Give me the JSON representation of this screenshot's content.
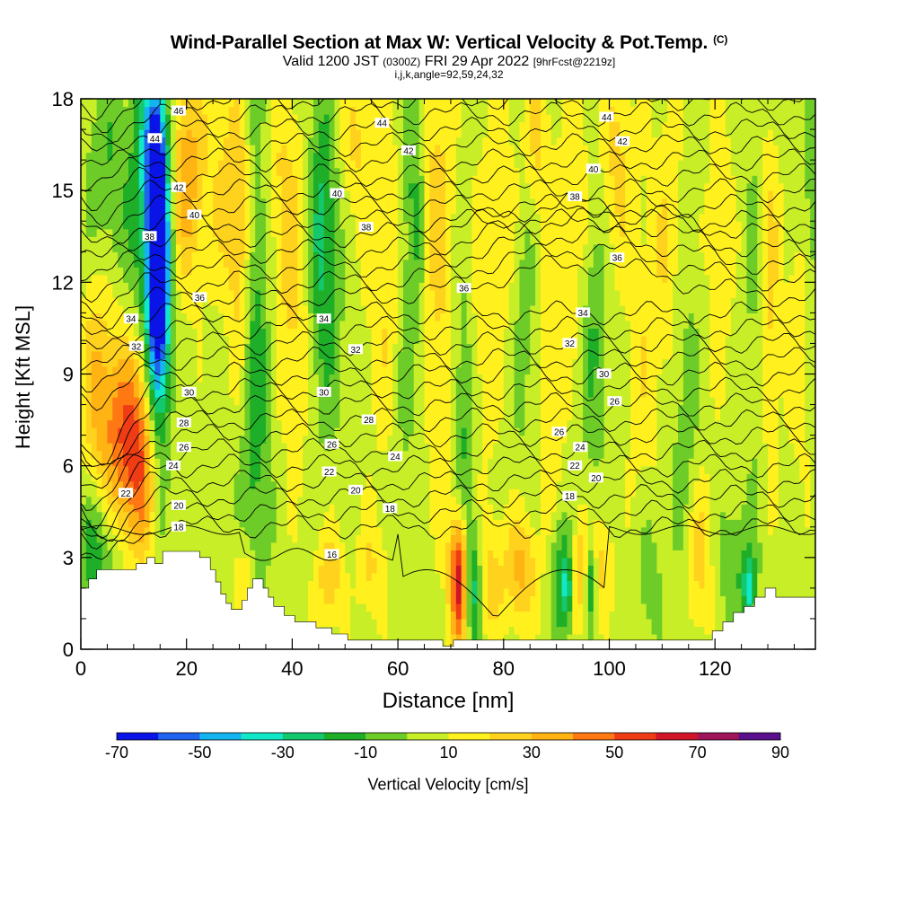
{
  "titles": {
    "main": "Wind-Parallel Section at Max W: Vertical Velocity & Pot.Temp.",
    "main_tag": "(C)",
    "sub_valid": "Valid 1200 JST",
    "sub_utc": "(0300Z)",
    "sub_date": "FRI 29 Apr 2022",
    "sub_fcst": "[9hrFcst@2219z]",
    "indices": "i,j,k,angle=92,59,24,32"
  },
  "chart_data": {
    "type": "heatmap",
    "title": "Wind-Parallel Section at Max W: Vertical Velocity & Pot.Temp.",
    "xlabel": "Distance [nm]",
    "ylabel": "Height [Kft MSL]",
    "xlim": [
      0,
      139
    ],
    "ylim": [
      0,
      18
    ],
    "x_ticks": [
      0,
      20,
      40,
      60,
      80,
      100,
      120
    ],
    "y_ticks": [
      0,
      3,
      6,
      9,
      12,
      15,
      18
    ],
    "colorbar": {
      "label": "Vertical Velocity [cm/s]",
      "tick_labels": [
        -70,
        -50,
        -30,
        -10,
        10,
        30,
        50,
        70,
        90
      ],
      "bins": [
        {
          "range": [
            -70,
            -60
          ],
          "color": "#0a14e6"
        },
        {
          "range": [
            -60,
            -50
          ],
          "color": "#1e64ee"
        },
        {
          "range": [
            -50,
            -40
          ],
          "color": "#14b4f0"
        },
        {
          "range": [
            -40,
            -30
          ],
          "color": "#10e8c8"
        },
        {
          "range": [
            -30,
            -20
          ],
          "color": "#14c86e"
        },
        {
          "range": [
            -20,
            -10
          ],
          "color": "#1eae28"
        },
        {
          "range": [
            -10,
            0
          ],
          "color": "#6ecc28"
        },
        {
          "range": [
            0,
            10
          ],
          "color": "#c8ee28"
        },
        {
          "range": [
            10,
            20
          ],
          "color": "#fff01e"
        },
        {
          "range": [
            20,
            30
          ],
          "color": "#ffd21e"
        },
        {
          "range": [
            30,
            40
          ],
          "color": "#ffb414"
        },
        {
          "range": [
            40,
            50
          ],
          "color": "#ff7814"
        },
        {
          "range": [
            50,
            60
          ],
          "color": "#f03c14"
        },
        {
          "range": [
            60,
            70
          ],
          "color": "#d21428"
        },
        {
          "range": [
            70,
            80
          ],
          "color": "#a0145a"
        },
        {
          "range": [
            80,
            90
          ],
          "color": "#5a0f8c"
        }
      ]
    },
    "background_value": 5,
    "velocity_features": [
      {
        "x": 14.5,
        "y": 13.5,
        "sx": 1.4,
        "sy": 3.0,
        "v": -80
      },
      {
        "x": 14.8,
        "y": 10.5,
        "sx": 1.6,
        "sy": 4.0,
        "v": -45
      },
      {
        "x": 13.5,
        "y": 16.8,
        "sx": 1.8,
        "sy": 1.6,
        "v": -25
      },
      {
        "x": 11.5,
        "y": 14.5,
        "sx": 2.0,
        "sy": 3.0,
        "v": -18
      },
      {
        "x": 8.0,
        "y": 7.3,
        "sx": 4.5,
        "sy": 2.2,
        "v": 35
      },
      {
        "x": 11.0,
        "y": 5.5,
        "sx": 3.0,
        "sy": 2.0,
        "v": 28
      },
      {
        "x": 3.0,
        "y": 3.3,
        "sx": 3.0,
        "sy": 1.5,
        "v": -22
      },
      {
        "x": 20.0,
        "y": 15.5,
        "sx": 2.0,
        "sy": 2.5,
        "v": 30
      },
      {
        "x": 5.0,
        "y": 15.5,
        "sx": 3.0,
        "sy": 2.5,
        "v": -15
      },
      {
        "x": 3.0,
        "y": 10.0,
        "sx": 2.0,
        "sy": 2.5,
        "v": 15
      },
      {
        "x": 27.0,
        "y": 15.5,
        "sx": 3.5,
        "sy": 3.0,
        "v": 15
      },
      {
        "x": 33.5,
        "y": 12.0,
        "sx": 1.8,
        "sy": 5.5,
        "v": -20
      },
      {
        "x": 32.5,
        "y": 5.0,
        "sx": 1.8,
        "sy": 3.5,
        "v": -10
      },
      {
        "x": 31.0,
        "y": 2.2,
        "sx": 1.5,
        "sy": 1.0,
        "v": 20
      },
      {
        "x": 30.0,
        "y": 13.0,
        "sx": 1.5,
        "sy": 3.0,
        "v": 18
      },
      {
        "x": 38.0,
        "y": 15.0,
        "sx": 3.0,
        "sy": 3.0,
        "v": 15
      },
      {
        "x": 45.5,
        "y": 14.0,
        "sx": 2.0,
        "sy": 3.0,
        "v": -22
      },
      {
        "x": 46.0,
        "y": 11.5,
        "sx": 2.5,
        "sy": 4.0,
        "v": -12
      },
      {
        "x": 41.0,
        "y": 10.5,
        "sx": 2.5,
        "sy": 3.5,
        "v": 15
      },
      {
        "x": 52.0,
        "y": 16.5,
        "sx": 2.5,
        "sy": 2.0,
        "v": 15
      },
      {
        "x": 58.0,
        "y": 12.0,
        "sx": 3.0,
        "sy": 4.0,
        "v": 15
      },
      {
        "x": 63.0,
        "y": 14.5,
        "sx": 1.5,
        "sy": 3.5,
        "v": -20
      },
      {
        "x": 61.0,
        "y": 9.0,
        "sx": 1.5,
        "sy": 3.5,
        "v": -10
      },
      {
        "x": 67.5,
        "y": 15.0,
        "sx": 2.0,
        "sy": 3.0,
        "v": 18
      },
      {
        "x": 68.0,
        "y": 8.5,
        "sx": 2.0,
        "sy": 4.0,
        "v": 12
      },
      {
        "x": 72.5,
        "y": 7.5,
        "sx": 1.5,
        "sy": 3.5,
        "v": -20
      },
      {
        "x": 71.5,
        "y": 2.3,
        "sx": 1.2,
        "sy": 1.5,
        "v": 62
      },
      {
        "x": 74.5,
        "y": 2.1,
        "sx": 1.1,
        "sy": 1.4,
        "v": -38
      },
      {
        "x": 77.0,
        "y": 2.3,
        "sx": 2.5,
        "sy": 1.5,
        "v": 20
      },
      {
        "x": 76.0,
        "y": 10.5,
        "sx": 2.5,
        "sy": 3.5,
        "v": 12
      },
      {
        "x": 80.0,
        "y": 14.5,
        "sx": 2.5,
        "sy": 3.0,
        "v": 12
      },
      {
        "x": 83.5,
        "y": 2.6,
        "sx": 2.0,
        "sy": 1.3,
        "v": 28
      },
      {
        "x": 84.0,
        "y": 12.0,
        "sx": 1.8,
        "sy": 4.0,
        "v": -12
      },
      {
        "x": 86.0,
        "y": 16.5,
        "sx": 2.0,
        "sy": 2.0,
        "v": 18
      },
      {
        "x": 89.0,
        "y": 8.5,
        "sx": 2.0,
        "sy": 3.5,
        "v": 12
      },
      {
        "x": 90.5,
        "y": 2.3,
        "sx": 1.2,
        "sy": 1.5,
        "v": -22
      },
      {
        "x": 92.0,
        "y": 2.0,
        "sx": 0.7,
        "sy": 0.9,
        "v": -32
      },
      {
        "x": 94.5,
        "y": 2.5,
        "sx": 1.0,
        "sy": 1.2,
        "v": 25
      },
      {
        "x": 96.5,
        "y": 2.2,
        "sx": 0.8,
        "sy": 0.9,
        "v": -32
      },
      {
        "x": 98.5,
        "y": 2.8,
        "sx": 1.5,
        "sy": 1.2,
        "v": 20
      },
      {
        "x": 97.0,
        "y": 10.5,
        "sx": 1.8,
        "sy": 3.0,
        "v": -18
      },
      {
        "x": 94.0,
        "y": 14.5,
        "sx": 2.5,
        "sy": 3.5,
        "v": 12
      },
      {
        "x": 101.5,
        "y": 16.0,
        "sx": 2.0,
        "sy": 2.5,
        "v": 18
      },
      {
        "x": 106.0,
        "y": 9.5,
        "sx": 2.0,
        "sy": 4.0,
        "v": 12
      },
      {
        "x": 107.5,
        "y": 2.5,
        "sx": 1.8,
        "sy": 1.5,
        "v": -12
      },
      {
        "x": 111.0,
        "y": 13.0,
        "sx": 2.0,
        "sy": 4.0,
        "v": 15
      },
      {
        "x": 114.0,
        "y": 7.5,
        "sx": 2.0,
        "sy": 4.0,
        "v": -12
      },
      {
        "x": 117.0,
        "y": 3.0,
        "sx": 2.0,
        "sy": 1.8,
        "v": 20
      },
      {
        "x": 121.0,
        "y": 13.5,
        "sx": 2.0,
        "sy": 3.5,
        "v": 12
      },
      {
        "x": 124.0,
        "y": 2.7,
        "sx": 2.5,
        "sy": 1.5,
        "v": -15
      },
      {
        "x": 126.5,
        "y": 2.0,
        "sx": 0.8,
        "sy": 0.8,
        "v": -32
      },
      {
        "x": 128.0,
        "y": 12.0,
        "sx": 1.5,
        "sy": 4.5,
        "v": -12
      },
      {
        "x": 130.0,
        "y": 12.0,
        "sx": 1.5,
        "sy": 4.0,
        "v": 22
      },
      {
        "x": 136.0,
        "y": 10.5,
        "sx": 2.0,
        "sy": 3.5,
        "v": 12
      },
      {
        "x": 138.5,
        "y": 14.5,
        "sx": 1.5,
        "sy": 3.0,
        "v": -15
      },
      {
        "x": 55.0,
        "y": 2.6,
        "sx": 2.0,
        "sy": 1.2,
        "v": 15
      },
      {
        "x": 47.0,
        "y": 2.4,
        "sx": 2.0,
        "sy": 1.2,
        "v": 22
      }
    ],
    "potential_temperature_contours_labels_C": [
      16,
      18,
      20,
      22,
      24,
      26,
      28,
      30,
      32,
      34,
      36,
      38,
      40,
      42,
      44,
      46
    ],
    "contour_labels": [
      {
        "text": "46",
        "x": 18.5,
        "y": 17.6
      },
      {
        "text": "44",
        "x": 14.0,
        "y": 16.7
      },
      {
        "text": "42",
        "x": 18.5,
        "y": 15.1
      },
      {
        "text": "40",
        "x": 21.5,
        "y": 14.2
      },
      {
        "text": "38",
        "x": 13.0,
        "y": 13.5
      },
      {
        "text": "36",
        "x": 22.5,
        "y": 11.5
      },
      {
        "text": "34",
        "x": 9.5,
        "y": 10.8
      },
      {
        "text": "32",
        "x": 10.5,
        "y": 9.9
      },
      {
        "text": "30",
        "x": 20.5,
        "y": 8.4
      },
      {
        "text": "28",
        "x": 19.5,
        "y": 7.4
      },
      {
        "text": "26",
        "x": 19.5,
        "y": 6.6
      },
      {
        "text": "24",
        "x": 17.5,
        "y": 6.0
      },
      {
        "text": "22",
        "x": 8.5,
        "y": 5.1
      },
      {
        "text": "20",
        "x": 18.5,
        "y": 4.7
      },
      {
        "text": "18",
        "x": 18.5,
        "y": 4.0
      },
      {
        "text": "16",
        "x": 47.5,
        "y": 3.1
      },
      {
        "text": "18",
        "x": 58.5,
        "y": 4.6
      },
      {
        "text": "20",
        "x": 52.0,
        "y": 5.2
      },
      {
        "text": "22",
        "x": 47.0,
        "y": 5.8
      },
      {
        "text": "24",
        "x": 59.5,
        "y": 6.3
      },
      {
        "text": "26",
        "x": 47.5,
        "y": 6.7
      },
      {
        "text": "28",
        "x": 54.5,
        "y": 7.5
      },
      {
        "text": "30",
        "x": 46.0,
        "y": 8.4
      },
      {
        "text": "32",
        "x": 52.0,
        "y": 9.8
      },
      {
        "text": "34",
        "x": 46.0,
        "y": 10.8
      },
      {
        "text": "36",
        "x": 72.5,
        "y": 11.8
      },
      {
        "text": "38",
        "x": 54.0,
        "y": 13.8
      },
      {
        "text": "40",
        "x": 48.5,
        "y": 14.9
      },
      {
        "text": "42",
        "x": 62.0,
        "y": 16.3
      },
      {
        "text": "44",
        "x": 57.0,
        "y": 17.2
      },
      {
        "text": "18",
        "x": 92.5,
        "y": 5.0
      },
      {
        "text": "20",
        "x": 97.5,
        "y": 5.6
      },
      {
        "text": "22",
        "x": 93.5,
        "y": 6.0
      },
      {
        "text": "24",
        "x": 94.5,
        "y": 6.6
      },
      {
        "text": "26",
        "x": 90.5,
        "y": 7.1
      },
      {
        "text": "26",
        "x": 101.0,
        "y": 8.1
      },
      {
        "text": "30",
        "x": 99.0,
        "y": 9.0
      },
      {
        "text": "32",
        "x": 92.5,
        "y": 10.0
      },
      {
        "text": "34",
        "x": 95.0,
        "y": 11.0
      },
      {
        "text": "36",
        "x": 101.5,
        "y": 12.8
      },
      {
        "text": "38",
        "x": 93.5,
        "y": 14.8
      },
      {
        "text": "40",
        "x": 97.0,
        "y": 15.7
      },
      {
        "text": "42",
        "x": 102.5,
        "y": 16.6
      },
      {
        "text": "44",
        "x": 99.5,
        "y": 17.4
      }
    ],
    "terrain_profile": [
      [
        0,
        2.0
      ],
      [
        1.5,
        2.0
      ],
      [
        1.5,
        2.3
      ],
      [
        3,
        2.3
      ],
      [
        3,
        2.6
      ],
      [
        10.5,
        2.6
      ],
      [
        10.5,
        2.8
      ],
      [
        12.5,
        2.8
      ],
      [
        12.5,
        3.0
      ],
      [
        14,
        3.0
      ],
      [
        14,
        2.8
      ],
      [
        15.5,
        2.8
      ],
      [
        15.5,
        3.2
      ],
      [
        22.5,
        3.2
      ],
      [
        22.5,
        3.0
      ],
      [
        24.5,
        3.0
      ],
      [
        24.5,
        2.6
      ],
      [
        25.5,
        2.6
      ],
      [
        25.5,
        2.2
      ],
      [
        26.5,
        2.2
      ],
      [
        26.5,
        1.8
      ],
      [
        27.5,
        1.8
      ],
      [
        27.5,
        1.5
      ],
      [
        28.5,
        1.5
      ],
      [
        28.5,
        1.3
      ],
      [
        30.5,
        1.3
      ],
      [
        30.5,
        1.6
      ],
      [
        31.5,
        1.6
      ],
      [
        31.5,
        2.0
      ],
      [
        32.5,
        2.0
      ],
      [
        32.5,
        2.3
      ],
      [
        34.5,
        2.3
      ],
      [
        34.5,
        2.0
      ],
      [
        35.5,
        2.0
      ],
      [
        35.5,
        1.7
      ],
      [
        36.5,
        1.7
      ],
      [
        36.5,
        1.4
      ],
      [
        38.5,
        1.4
      ],
      [
        38.5,
        1.1
      ],
      [
        40.5,
        1.1
      ],
      [
        40.5,
        0.9
      ],
      [
        44.5,
        0.9
      ],
      [
        44.5,
        0.7
      ],
      [
        47.5,
        0.7
      ],
      [
        47.5,
        0.5
      ],
      [
        50.5,
        0.5
      ],
      [
        50.5,
        0.3
      ],
      [
        68.5,
        0.3
      ],
      [
        68.5,
        0.1
      ],
      [
        70.5,
        0.1
      ],
      [
        70.5,
        0.3
      ],
      [
        119.5,
        0.3
      ],
      [
        119.5,
        0.6
      ],
      [
        121.5,
        0.6
      ],
      [
        121.5,
        0.9
      ],
      [
        123.5,
        0.9
      ],
      [
        123.5,
        1.2
      ],
      [
        125.5,
        1.2
      ],
      [
        125.5,
        1.4
      ],
      [
        127.5,
        1.4
      ],
      [
        127.5,
        1.7
      ],
      [
        129.5,
        1.7
      ],
      [
        129.5,
        2.0
      ],
      [
        131.5,
        2.0
      ],
      [
        131.5,
        1.7
      ],
      [
        139,
        1.7
      ]
    ]
  }
}
